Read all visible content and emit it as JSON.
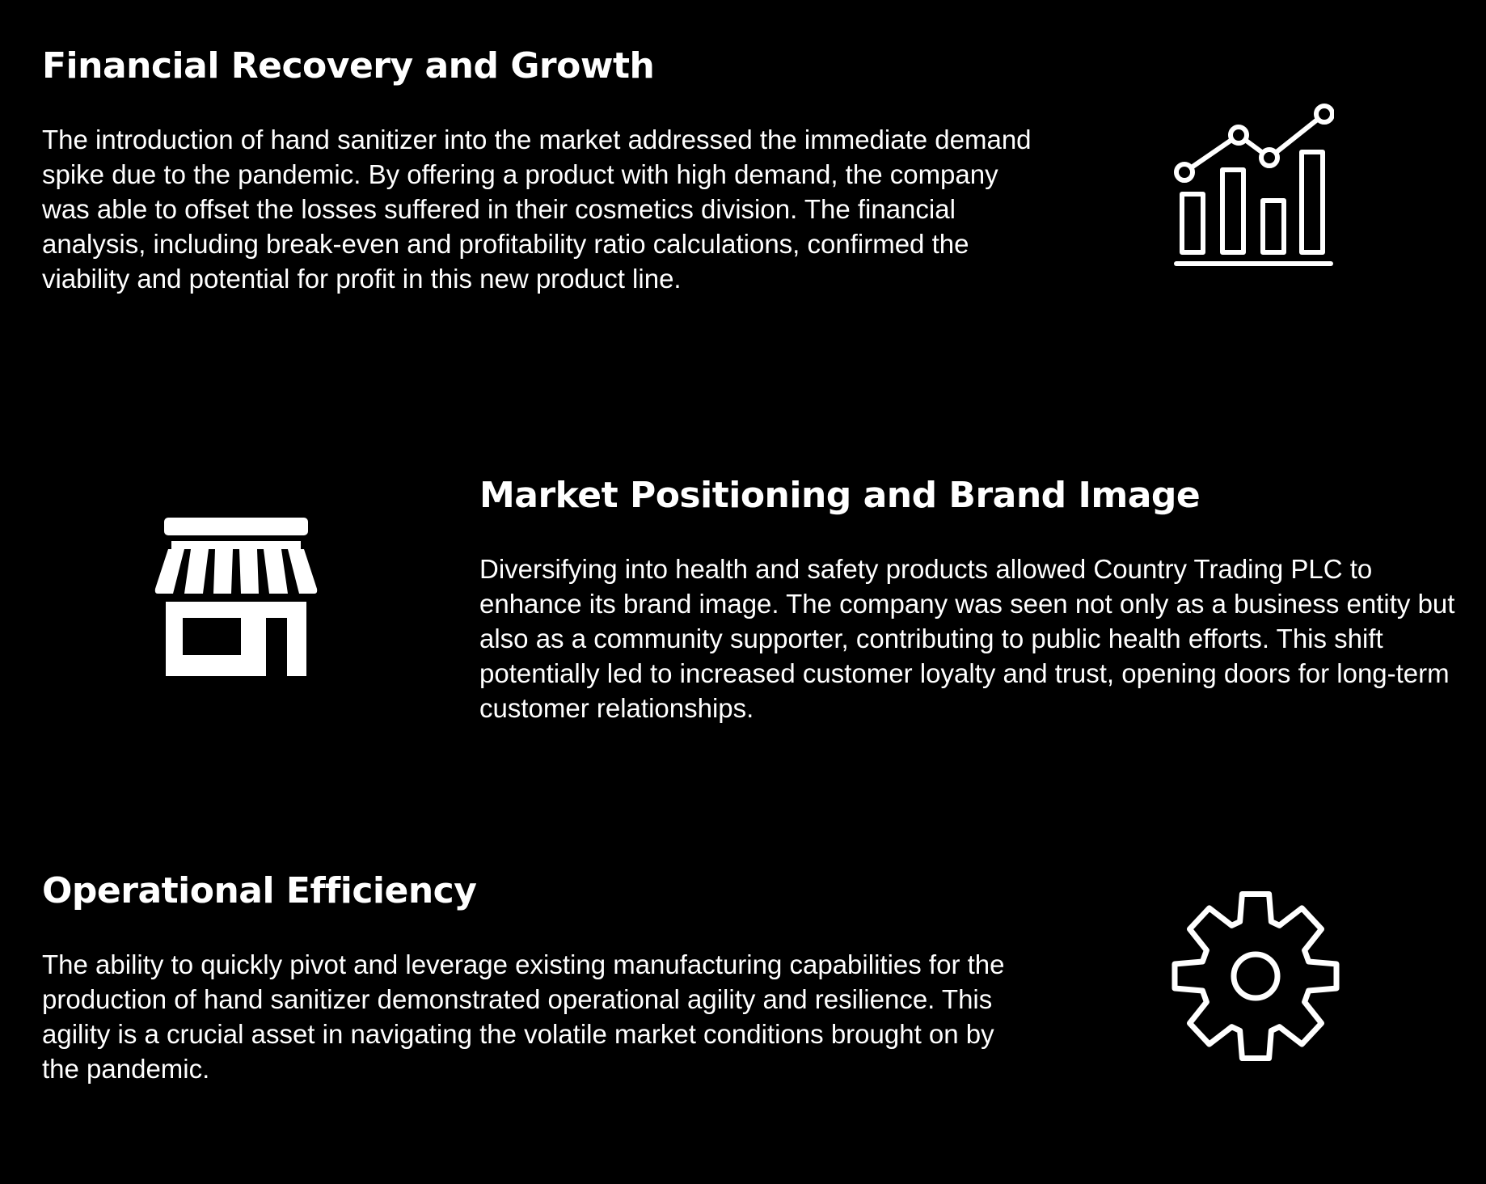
{
  "sections": [
    {
      "title": "Financial Recovery and Growth",
      "body": "The introduction of hand sanitizer into the market addressed the immediate demand spike due to the pandemic. By offering a product with high demand, the company was able to offset the losses suffered in their cosmetics division. The financial analysis, including break-even and profitability ratio calculations, confirmed the viability and potential for profit in this new product line.",
      "icon": "bar-chart-trend-icon"
    },
    {
      "title": "Market Positioning and Brand Image",
      "body": "Diversifying into health and safety products allowed Country Trading PLC to enhance its brand image. The company was seen not only as a business entity but also as a community supporter, contributing to public health efforts. This shift potentially led to increased customer loyalty and trust, opening doors for long-term customer relationships.",
      "icon": "storefront-icon"
    },
    {
      "title": "Operational Efficiency",
      "body": "The ability to quickly pivot and leverage existing manufacturing capabilities for the production of hand sanitizer demonstrated operational agility and resilience. This agility is a crucial asset in navigating the volatile market conditions brought on by the pandemic.",
      "icon": "gear-icon"
    }
  ],
  "colors": {
    "background": "#000000",
    "foreground": "#ffffff"
  }
}
